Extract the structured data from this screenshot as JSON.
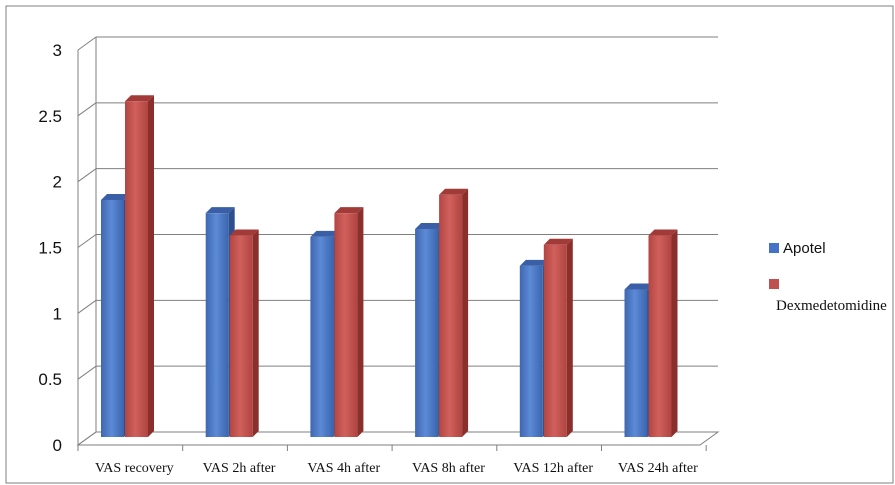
{
  "chart_data": {
    "type": "bar",
    "categories": [
      "VAS recovery",
      "VAS 2h after",
      "VAS 4h after",
      "VAS 8h after",
      "VAS 12h after",
      "VAS 24h after"
    ],
    "series": [
      {
        "name": "Apotel",
        "values": [
          1.8,
          1.7,
          1.52,
          1.58,
          1.3,
          1.12
        ]
      },
      {
        "name": "Dexmedetomidine",
        "values": [
          2.55,
          1.53,
          1.7,
          1.84,
          1.46,
          1.53
        ]
      }
    ],
    "yticks": [
      "0",
      "0.5",
      "1",
      "1.5",
      "2",
      "2.5",
      "3"
    ],
    "ylim": [
      0,
      3
    ],
    "grid": true,
    "legend_position": "right",
    "colors": {
      "Apotel": "#4472C4",
      "Dexmedetomidine": "#C0504D"
    }
  }
}
